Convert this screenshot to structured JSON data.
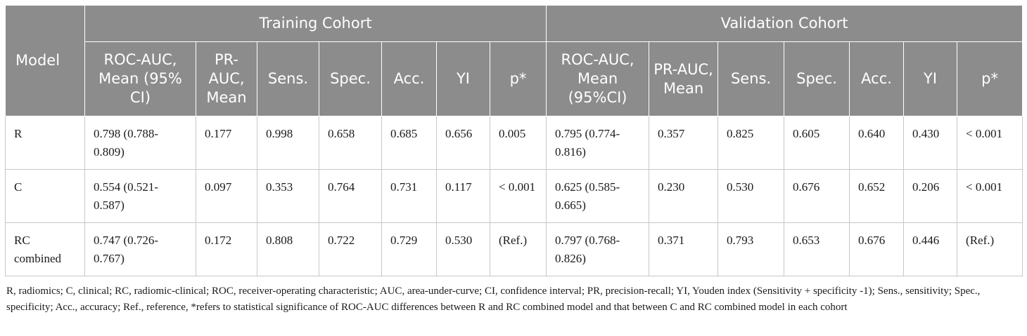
{
  "table": {
    "model_header": "Model",
    "groups": [
      {
        "label": "Training Cohort"
      },
      {
        "label": "Validation Cohort"
      }
    ],
    "training_columns": [
      "ROC-AUC, Mean (95% CI)",
      "PR-AUC, Mean",
      "Sens.",
      "Spec.",
      "Acc.",
      "YI",
      "p*"
    ],
    "validation_columns": [
      "ROC-AUC, Mean (95%CI)",
      "PR-AUC, Mean",
      "Sens.",
      "Spec.",
      "Acc.",
      "YI",
      "p*"
    ],
    "rows": [
      {
        "model": "R",
        "cells": [
          "0.798 (0.788-0.809)",
          "0.177",
          "0.998",
          "0.658",
          "0.685",
          "0.656",
          "0.005",
          "0.795 (0.774-0.816)",
          "0.357",
          "0.825",
          "0.605",
          "0.640",
          "0.430",
          "< 0.001"
        ]
      },
      {
        "model": "C",
        "cells": [
          "0.554 (0.521-0.587)",
          "0.097",
          "0.353",
          "0.764",
          "0.731",
          "0.117",
          "< 0.001",
          "0.625 (0.585-0.665)",
          "0.230",
          "0.530",
          "0.676",
          "0.652",
          "0.206",
          "< 0.001"
        ]
      },
      {
        "model": "RC combined",
        "cells": [
          "0.747 (0.726-0.767)",
          "0.172",
          "0.808",
          "0.722",
          "0.729",
          "0.530",
          "(Ref.)",
          "0.797 (0.768-0.826)",
          "0.371",
          "0.793",
          "0.653",
          "0.676",
          "0.446",
          "(Ref.)"
        ]
      }
    ]
  },
  "footnote": "R, radiomics; C, clinical; RC, radiomic-clinical; ROC, receiver-operating characteristic; AUC, area-under-curve; CI, confidence interval; PR, precision-recall; YI, Youden index (Sensitivity + specificity -1); Sens., sensitivity; Spec., specificity; Acc., accuracy; Ref., reference, *refers to statistical significance of ROC-AUC differences between R and RC combined model and that between C and RC combined model in each cohort",
  "colors": {
    "header_bg": "#8c8c8c",
    "header_text": "#ffffff",
    "grid": "#c8c8c8"
  }
}
